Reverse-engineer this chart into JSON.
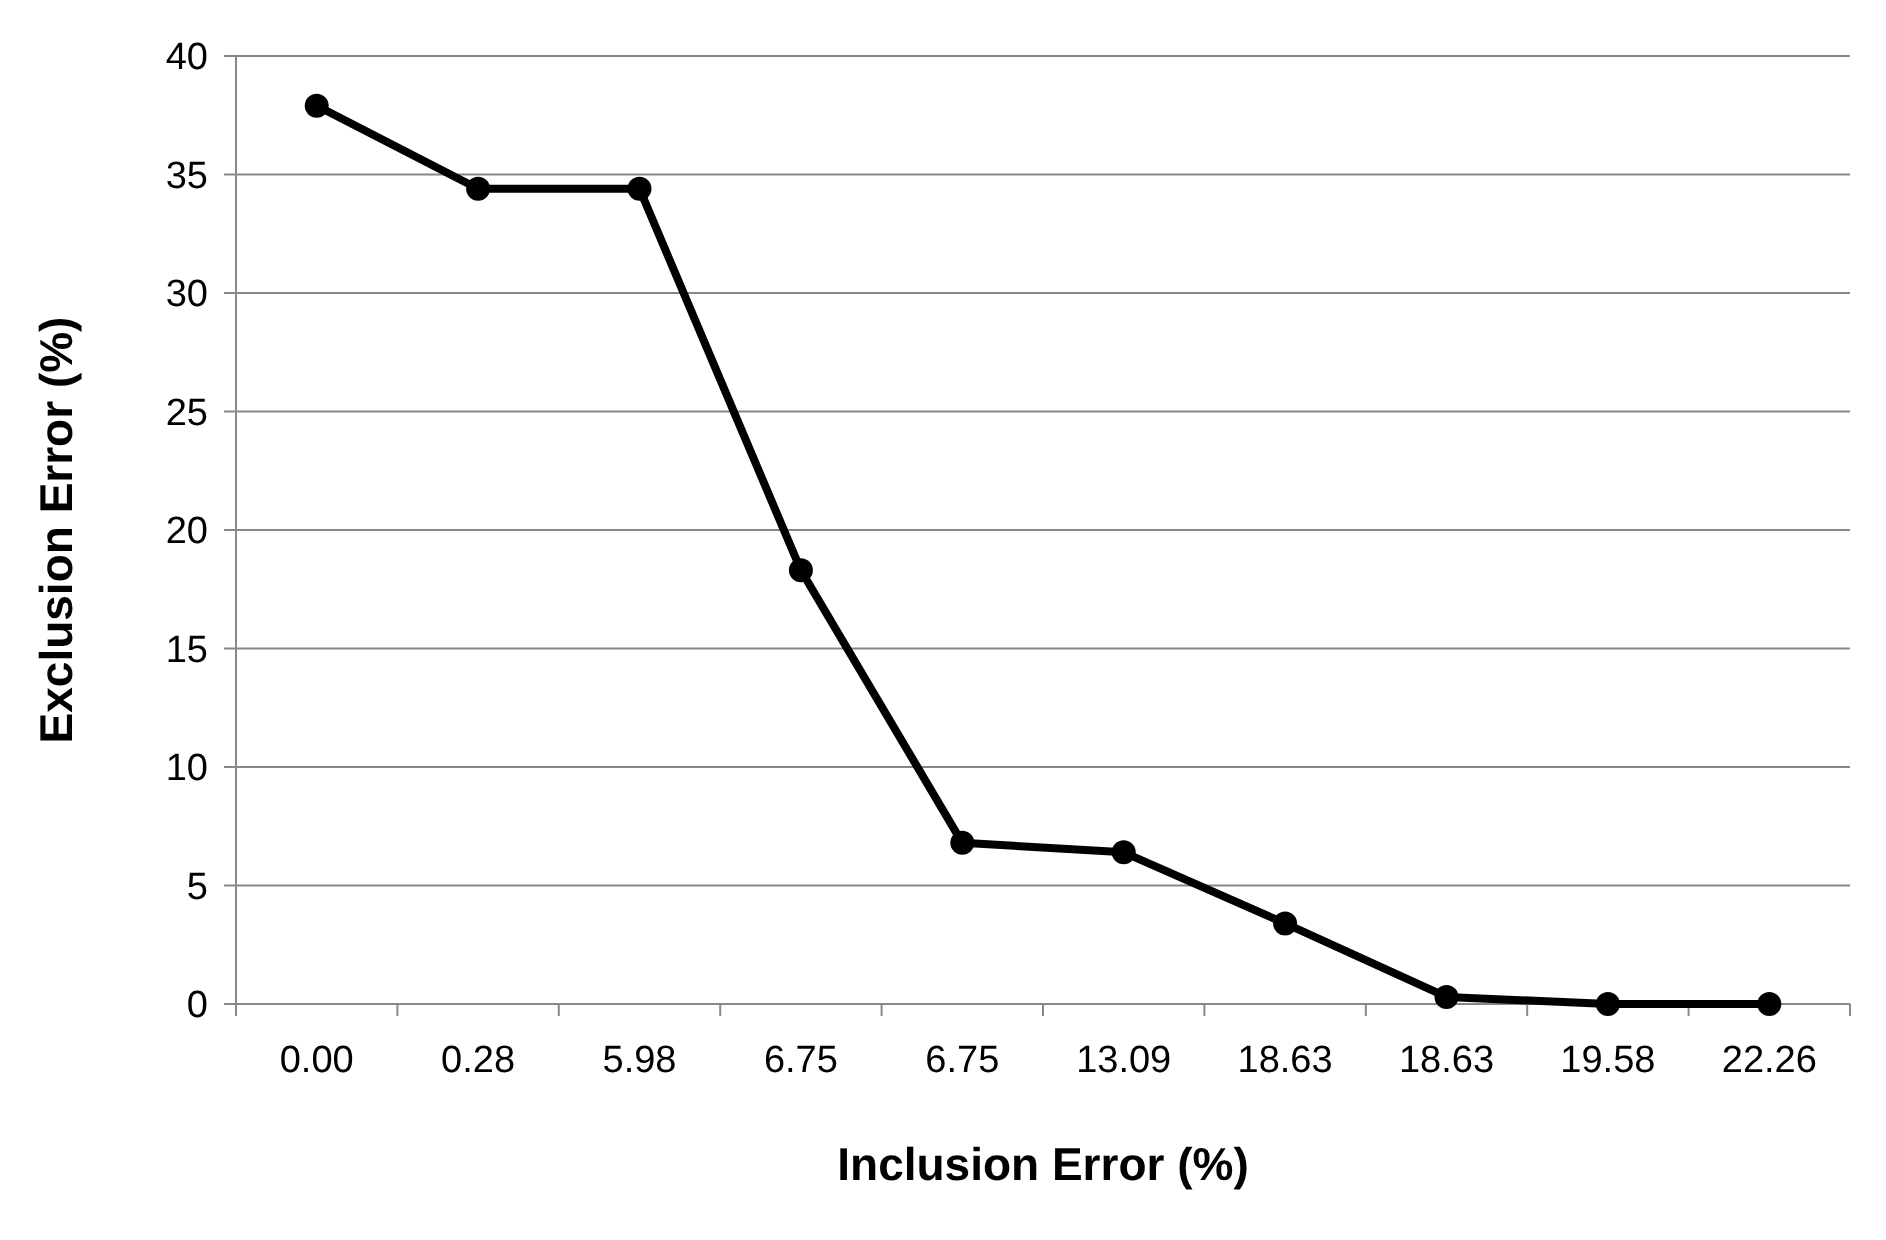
{
  "chart_data": {
    "type": "line",
    "xlabel": "Inclusion Error (%)",
    "ylabel": "Exclusion Error (%)",
    "categories": [
      "0.00",
      "0.28",
      "5.98",
      "6.75",
      "6.75",
      "13.09",
      "18.63",
      "18.63",
      "19.58",
      "22.26"
    ],
    "series": [
      {
        "color": "#000000",
        "values": [
          37.9,
          34.4,
          34.4,
          18.3,
          6.8,
          6.4,
          3.4,
          0.3,
          0,
          0
        ]
      }
    ],
    "ylim": [
      0,
      40
    ],
    "yticks": [
      0,
      5,
      10,
      15,
      20,
      25,
      30,
      35,
      40
    ],
    "grid": "y",
    "marker": "circle",
    "line_style": "solid"
  }
}
